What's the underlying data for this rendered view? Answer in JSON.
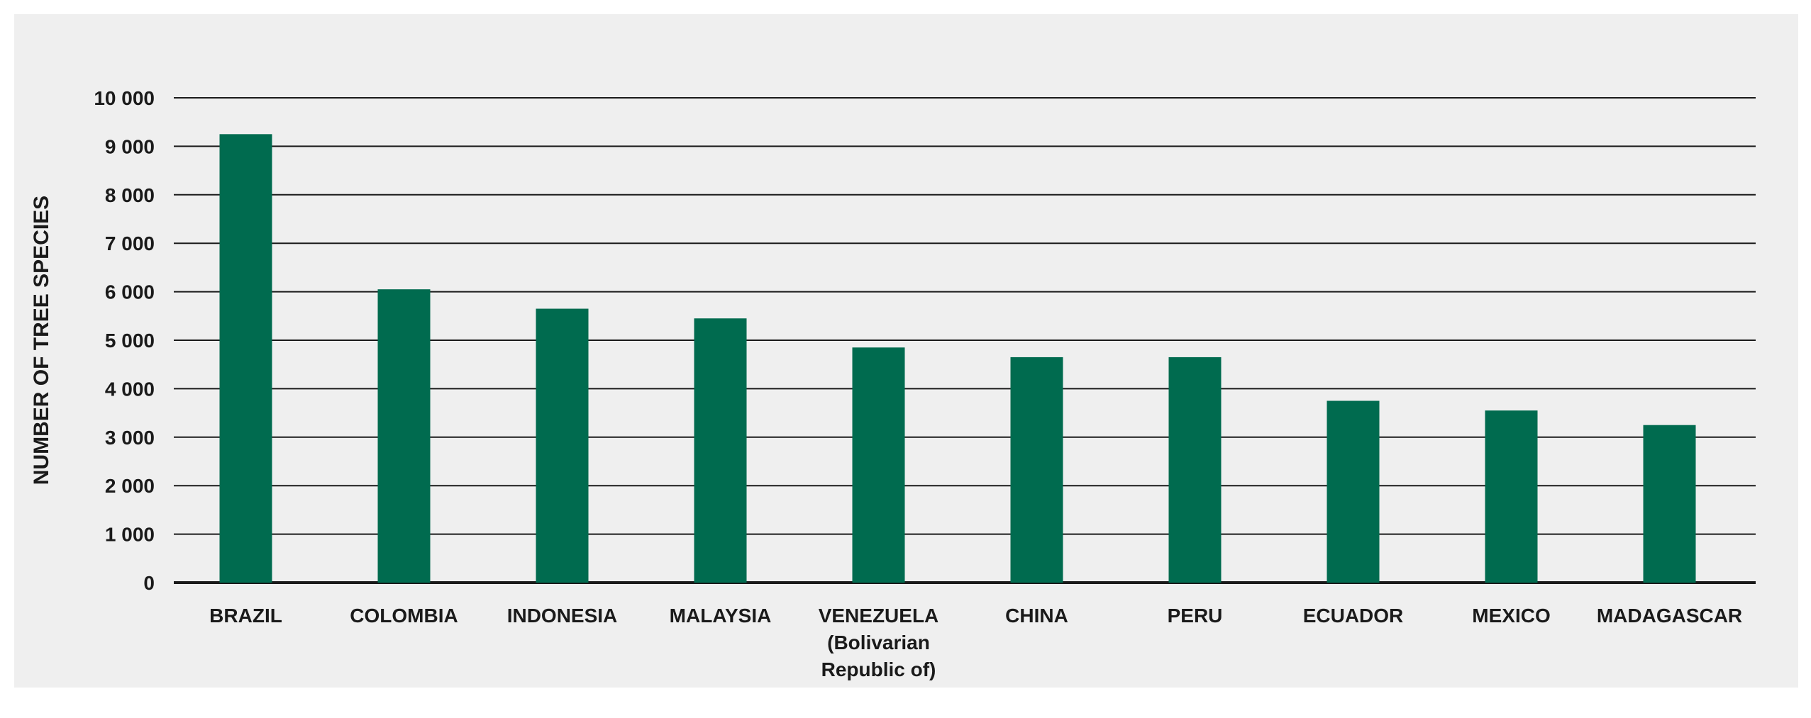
{
  "colors": {
    "bar": "#006b4f",
    "grid": "#1a1a1a",
    "background": "#efefef"
  },
  "chart_data": {
    "type": "bar",
    "title": "",
    "xlabel": "",
    "ylabel": "NUMBER OF TREE SPECIES",
    "ylim": [
      0,
      10000
    ],
    "yticks": [
      0,
      1000,
      2000,
      3000,
      4000,
      5000,
      6000,
      7000,
      8000,
      9000,
      10000
    ],
    "ytick_labels": [
      "0",
      "1 000",
      "2 000",
      "3 000",
      "4 000",
      "5 000",
      "6 000",
      "7 000",
      "8 000",
      "9 000",
      "10 000"
    ],
    "grid": true,
    "legend": "none",
    "categories": [
      "BRAZIL",
      "COLOMBIA",
      "INDONESIA",
      "MALAYSIA",
      "VENEZUELA (Bolivarian Republic of)",
      "CHINA",
      "PERU",
      "ECUADOR",
      "MEXICO",
      "MADAGASCAR"
    ],
    "category_lines": [
      [
        "BRAZIL"
      ],
      [
        "COLOMBIA"
      ],
      [
        "INDONESIA"
      ],
      [
        "MALAYSIA"
      ],
      [
        "VENEZUELA",
        "(Bolivarian",
        "Republic of)"
      ],
      [
        "CHINA"
      ],
      [
        "PERU"
      ],
      [
        "ECUADOR"
      ],
      [
        "MEXICO"
      ],
      [
        "MADAGASCAR"
      ]
    ],
    "values": [
      9250,
      6050,
      5650,
      5450,
      4850,
      4650,
      4650,
      3750,
      3550,
      3250
    ]
  }
}
